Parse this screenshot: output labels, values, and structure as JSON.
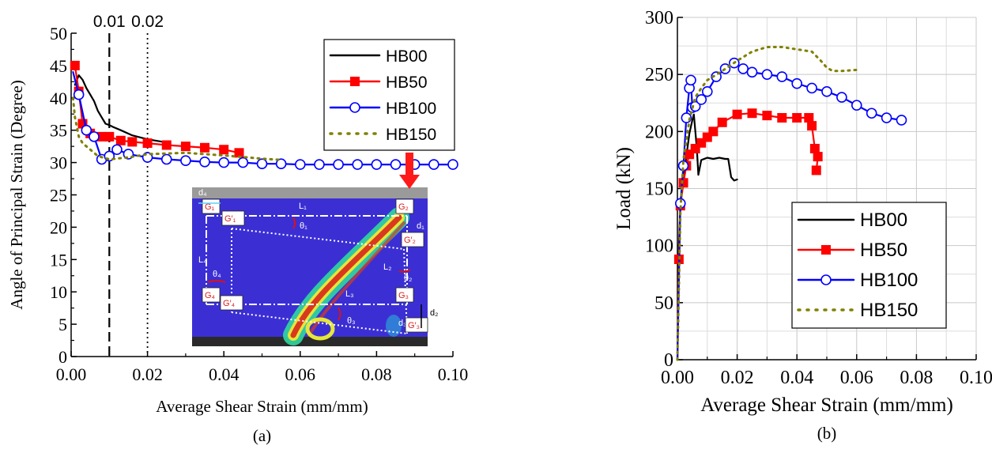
{
  "colors": {
    "HB00": "#000000",
    "HB50": "#ff0000",
    "HB100": "#0000ff",
    "HB150": "#808000"
  },
  "chart_data": [
    {
      "panel_label": "(a)",
      "type": "line",
      "xlabel": "Average Shear Strain (mm/mm)",
      "ylabel": "Angle of Principal Strain (Degree)",
      "xlim": [
        0,
        0.1
      ],
      "ylim": [
        0,
        50
      ],
      "x_ticks": [
        "0.00",
        "0.02",
        "0.04",
        "0.06",
        "0.08",
        "0.10"
      ],
      "y_ticks": [
        "0",
        "5",
        "10",
        "15",
        "20",
        "25",
        "30",
        "35",
        "40",
        "45",
        "50"
      ],
      "top_ticks": [
        "0.01",
        "0.02"
      ],
      "reference_lines": [
        {
          "x": 0.01,
          "style": "dashed"
        },
        {
          "x": 0.02,
          "style": "dotted"
        }
      ],
      "legend_position": "top-right",
      "series": [
        {
          "name": "HB00",
          "marker": "none",
          "style": "solid",
          "points": [
            [
              0.001,
              42
            ],
            [
              0.002,
              43.5
            ],
            [
              0.003,
              42.8
            ],
            [
              0.004,
              41.5
            ],
            [
              0.005,
              40.5
            ],
            [
              0.006,
              39.5
            ],
            [
              0.007,
              38
            ],
            [
              0.008,
              37
            ],
            [
              0.009,
              36
            ],
            [
              0.01,
              35.8
            ],
            [
              0.011,
              35.5
            ],
            [
              0.013,
              35
            ],
            [
              0.016,
              34.2
            ],
            [
              0.02,
              33.6
            ],
            [
              0.025,
              33.1
            ]
          ]
        },
        {
          "name": "HB50",
          "marker": "square",
          "style": "solid",
          "points": [
            [
              0.0005,
              44.5
            ],
            [
              0.001,
              45
            ],
            [
              0.002,
              41
            ],
            [
              0.003,
              36
            ],
            [
              0.005,
              34.5
            ],
            [
              0.008,
              34
            ],
            [
              0.01,
              34
            ],
            [
              0.013,
              33.4
            ],
            [
              0.016,
              33.2
            ],
            [
              0.02,
              33
            ],
            [
              0.025,
              32.7
            ],
            [
              0.03,
              32.5
            ],
            [
              0.035,
              32.3
            ],
            [
              0.04,
              32
            ],
            [
              0.044,
              31.5
            ]
          ]
        },
        {
          "name": "HB100",
          "marker": "circle",
          "style": "solid",
          "points": [
            [
              0.0005,
              44
            ],
            [
              0.002,
              40.5
            ],
            [
              0.004,
              35
            ],
            [
              0.006,
              34
            ],
            [
              0.008,
              30.5
            ],
            [
              0.01,
              31
            ],
            [
              0.012,
              32
            ],
            [
              0.015,
              31.3
            ],
            [
              0.02,
              30.8
            ],
            [
              0.025,
              30.5
            ],
            [
              0.03,
              30.3
            ],
            [
              0.035,
              30.1
            ],
            [
              0.04,
              30
            ],
            [
              0.045,
              30
            ],
            [
              0.05,
              29.8
            ],
            [
              0.055,
              29.8
            ],
            [
              0.06,
              29.7
            ],
            [
              0.065,
              29.7
            ],
            [
              0.07,
              29.7
            ],
            [
              0.075,
              29.7
            ],
            [
              0.08,
              29.7
            ],
            [
              0.085,
              29.7
            ],
            [
              0.09,
              29.7
            ],
            [
              0.095,
              29.7
            ],
            [
              0.1,
              29.7
            ]
          ]
        },
        {
          "name": "HB150",
          "marker": "none",
          "style": "dotted",
          "points": [
            [
              0.0005,
              40
            ],
            [
              0.001,
              37
            ],
            [
              0.002,
              34
            ],
            [
              0.003,
              33
            ],
            [
              0.005,
              32
            ],
            [
              0.007,
              31
            ],
            [
              0.01,
              30.5
            ],
            [
              0.015,
              30.8
            ],
            [
              0.02,
              31.3
            ],
            [
              0.03,
              31.5
            ],
            [
              0.04,
              31.1
            ],
            [
              0.05,
              30.6
            ],
            [
              0.055,
              30.4
            ]
          ]
        }
      ]
    },
    {
      "panel_label": "(b)",
      "type": "line",
      "xlabel": "Average Shear Strain (mm/mm)",
      "ylabel": "Load (kN)",
      "xlim": [
        0,
        0.1
      ],
      "ylim": [
        0,
        300
      ],
      "x_ticks": [
        "0.00",
        "0.02",
        "0.04",
        "0.06",
        "0.08",
        "0.10"
      ],
      "y_ticks": [
        "0",
        "50",
        "100",
        "150",
        "200",
        "250",
        "300"
      ],
      "grid": true,
      "legend_position": "bottom-right",
      "series": [
        {
          "name": "HB00",
          "marker": "none",
          "style": "solid",
          "points": [
            [
              0,
              0
            ],
            [
              0.0005,
              100
            ],
            [
              0.001,
              138
            ],
            [
              0.002,
              158
            ],
            [
              0.003,
              178
            ],
            [
              0.004,
              198
            ],
            [
              0.005,
              210
            ],
            [
              0.0055,
              215
            ],
            [
              0.006,
              200
            ],
            [
              0.0065,
              185
            ],
            [
              0.007,
              162
            ],
            [
              0.008,
              175
            ],
            [
              0.01,
              177
            ],
            [
              0.012,
              176
            ],
            [
              0.014,
              177
            ],
            [
              0.016,
              176
            ],
            [
              0.017,
              176
            ],
            [
              0.018,
              160
            ],
            [
              0.019,
              157
            ],
            [
              0.02,
              158
            ]
          ]
        },
        {
          "name": "HB50",
          "marker": "square",
          "style": "solid",
          "points": [
            [
              0,
              0
            ],
            [
              0.0005,
              88
            ],
            [
              0.001,
              135
            ],
            [
              0.002,
              155
            ],
            [
              0.003,
              170
            ],
            [
              0.004,
              180
            ],
            [
              0.006,
              185
            ],
            [
              0.008,
              190
            ],
            [
              0.01,
              195
            ],
            [
              0.012,
              200
            ],
            [
              0.015,
              208
            ],
            [
              0.02,
              215
            ],
            [
              0.025,
              216
            ],
            [
              0.03,
              214
            ],
            [
              0.035,
              212
            ],
            [
              0.04,
              212
            ],
            [
              0.044,
              212
            ],
            [
              0.045,
              205
            ],
            [
              0.046,
              185
            ],
            [
              0.047,
              178
            ],
            [
              0.0465,
              166
            ]
          ]
        },
        {
          "name": "HB100",
          "marker": "circle",
          "style": "solid",
          "points": [
            [
              0,
              0
            ],
            [
              0.001,
              137
            ],
            [
              0.002,
              170
            ],
            [
              0.003,
              212
            ],
            [
              0.004,
              238
            ],
            [
              0.0045,
              245
            ],
            [
              0.005,
              221
            ],
            [
              0.006,
              222
            ],
            [
              0.008,
              228
            ],
            [
              0.01,
              235
            ],
            [
              0.013,
              248
            ],
            [
              0.016,
              255
            ],
            [
              0.019,
              260
            ],
            [
              0.022,
              255
            ],
            [
              0.025,
              252
            ],
            [
              0.03,
              250
            ],
            [
              0.035,
              248
            ],
            [
              0.04,
              242
            ],
            [
              0.045,
              238
            ],
            [
              0.05,
              235
            ],
            [
              0.055,
              230
            ],
            [
              0.06,
              223
            ],
            [
              0.065,
              216
            ],
            [
              0.07,
              212
            ],
            [
              0.075,
              210
            ]
          ]
        },
        {
          "name": "HB150",
          "marker": "none",
          "style": "dotted",
          "points": [
            [
              0,
              0
            ],
            [
              0.001,
              130
            ],
            [
              0.002,
              175
            ],
            [
              0.004,
              210
            ],
            [
              0.006,
              230
            ],
            [
              0.008,
              238
            ],
            [
              0.01,
              245
            ],
            [
              0.015,
              253
            ],
            [
              0.02,
              262
            ],
            [
              0.025,
              270
            ],
            [
              0.03,
              274
            ],
            [
              0.035,
              274
            ],
            [
              0.04,
              272
            ],
            [
              0.045,
              270
            ],
            [
              0.048,
              262
            ],
            [
              0.05,
              256
            ],
            [
              0.052,
              253
            ],
            [
              0.055,
              253
            ],
            [
              0.06,
              254
            ]
          ]
        }
      ]
    }
  ],
  "inset": {
    "labels": [
      "d₄",
      "L₁",
      "G₁",
      "G′₁",
      "θ₁",
      "G₂",
      "d₁",
      "G′₂",
      "L₄",
      "θ₄",
      "L₂",
      "θ₂",
      "L₃",
      "G₄",
      "G′₄",
      "θ₃",
      "G₃",
      "d₂",
      "d₃",
      "G′₃"
    ]
  }
}
